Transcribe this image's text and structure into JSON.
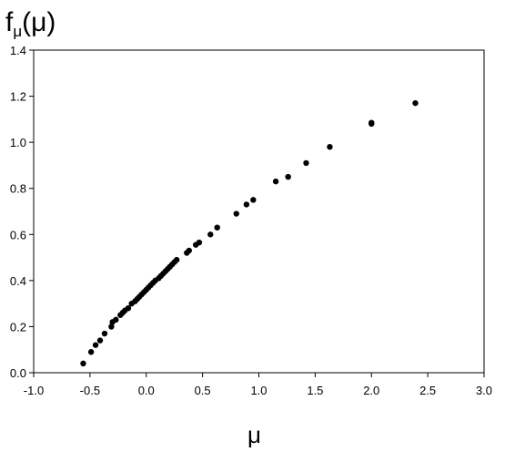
{
  "chart_data": {
    "type": "scatter",
    "ylabel": {
      "base": "f",
      "sub": "μ",
      "arg": "(μ)"
    },
    "xlabel": "μ",
    "xlim": [
      -1.0,
      3.0
    ],
    "ylim": [
      0.0,
      1.4
    ],
    "xticks": [
      "-1.0",
      "-0.5",
      "0.0",
      "0.5",
      "1.0",
      "1.5",
      "2.0",
      "2.5",
      "3.0"
    ],
    "yticks": [
      "0.0",
      "0.2",
      "0.4",
      "0.6",
      "0.8",
      "1.0",
      "1.2",
      "1.4"
    ],
    "grid": false,
    "marker_color": "#000000",
    "points": [
      [
        -0.56,
        0.04
      ],
      [
        -0.49,
        0.09
      ],
      [
        -0.45,
        0.12
      ],
      [
        -0.41,
        0.14
      ],
      [
        -0.37,
        0.17
      ],
      [
        -0.31,
        0.2
      ],
      [
        -0.3,
        0.22
      ],
      [
        -0.27,
        0.23
      ],
      [
        -0.23,
        0.25
      ],
      [
        -0.21,
        0.26
      ],
      [
        -0.19,
        0.27
      ],
      [
        -0.16,
        0.28
      ],
      [
        -0.13,
        0.3
      ],
      [
        -0.1,
        0.31
      ],
      [
        -0.08,
        0.32
      ],
      [
        -0.06,
        0.33
      ],
      [
        -0.04,
        0.34
      ],
      [
        -0.02,
        0.35
      ],
      [
        0.0,
        0.36
      ],
      [
        0.02,
        0.37
      ],
      [
        0.04,
        0.38
      ],
      [
        0.06,
        0.39
      ],
      [
        0.08,
        0.4
      ],
      [
        0.11,
        0.41
      ],
      [
        0.13,
        0.42
      ],
      [
        0.15,
        0.43
      ],
      [
        0.17,
        0.44
      ],
      [
        0.19,
        0.45
      ],
      [
        0.21,
        0.46
      ],
      [
        0.23,
        0.47
      ],
      [
        0.25,
        0.48
      ],
      [
        0.27,
        0.49
      ],
      [
        0.36,
        0.52
      ],
      [
        0.38,
        0.53
      ],
      [
        0.44,
        0.555
      ],
      [
        0.47,
        0.565
      ],
      [
        0.57,
        0.6
      ],
      [
        0.63,
        0.63
      ],
      [
        0.8,
        0.69
      ],
      [
        0.89,
        0.73
      ],
      [
        0.95,
        0.75
      ],
      [
        1.15,
        0.83
      ],
      [
        1.26,
        0.85
      ],
      [
        1.42,
        0.91
      ],
      [
        1.63,
        0.98
      ],
      [
        2.0,
        1.08
      ],
      [
        2.0,
        1.085
      ],
      [
        2.39,
        1.17
      ]
    ]
  }
}
